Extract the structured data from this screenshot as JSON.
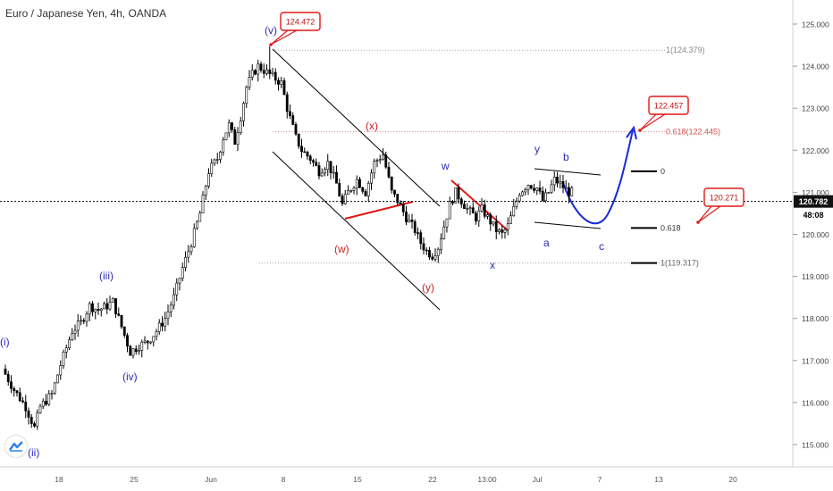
{
  "chart_data": {
    "type": "candlestick",
    "title": "Euro / Japanese Yen, 4h, OANDA",
    "y_axis": {
      "ticks": [
        "125.000",
        "124.000",
        "123.000",
        "122.000",
        "121.000",
        "120.000",
        "119.000",
        "118.000",
        "117.000",
        "116.000",
        "115.000"
      ],
      "tick_values": [
        125,
        124,
        123,
        122,
        121,
        120,
        119,
        118,
        117,
        116,
        115
      ],
      "ylim": [
        114.6,
        125.3
      ]
    },
    "x_axis": {
      "ticks": [
        "18",
        "25",
        "Jun",
        "8",
        "15",
        "22",
        "13:00",
        "Jul",
        "7",
        "13",
        "20"
      ]
    },
    "price_label": "120.782",
    "price_value": 120.782,
    "countdown": "48:08",
    "callouts": [
      {
        "text": "124.472",
        "value": 124.472
      },
      {
        "text": "122.457",
        "value": 122.457
      },
      {
        "text": "120.271",
        "value": 120.271
      }
    ],
    "fib_levels": [
      {
        "label": "1(124.379)",
        "value": 124.379
      },
      {
        "label": "0.618(122.445)",
        "value": 122.445
      },
      {
        "label": "0",
        "value": 121.5
      },
      {
        "label": "0.618",
        "value": 120.15
      },
      {
        "label": "1(119.317)",
        "value": 119.317
      }
    ],
    "wave_labels": {
      "blue": [
        "(i)",
        "(ii)",
        "(iii)",
        "(iv)",
        "(v)",
        "w",
        "x",
        "y",
        "a",
        "b",
        "c"
      ],
      "red": [
        "(w)",
        "(x)",
        "(y)"
      ]
    }
  },
  "colors": {
    "candle": "#000000",
    "label_blue": "#2a2ab8",
    "label_red": "#cc2222",
    "trendline_red": "#e01818",
    "projection_blue": "#1a2ad8",
    "fib_gray": "#888888",
    "price_badge": "#111111"
  },
  "logo_icon": "tradingview-logo-icon"
}
